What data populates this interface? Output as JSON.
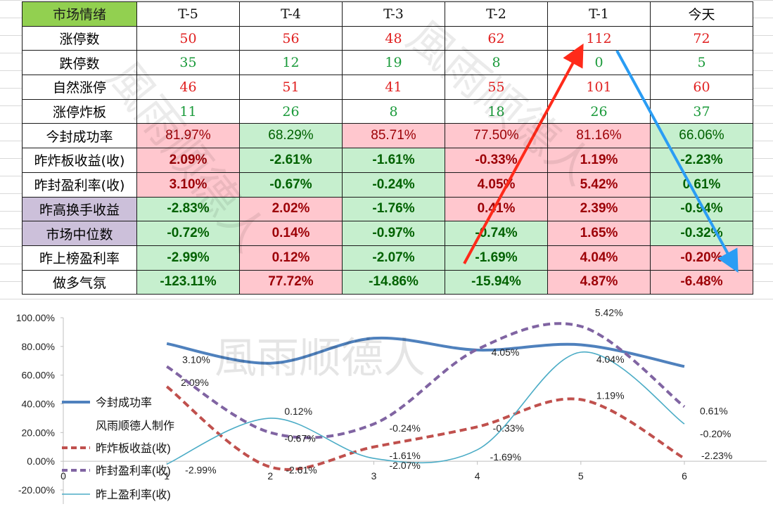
{
  "table": {
    "headers": [
      "市场情绪",
      "T-5",
      "T-4",
      "T-3",
      "T-2",
      "T-1",
      "今天"
    ],
    "rows": [
      {
        "label": "涨停数",
        "values": [
          "50",
          "56",
          "48",
          "62",
          "112",
          "72"
        ]
      },
      {
        "label": "跌停数",
        "values": [
          "35",
          "12",
          "19",
          "8",
          "0",
          "5"
        ]
      },
      {
        "label": "自然涨停",
        "values": [
          "46",
          "51",
          "41",
          "55",
          "101",
          "60"
        ]
      },
      {
        "label": "涨停炸板",
        "values": [
          "11",
          "26",
          "8",
          "18",
          "26",
          "37"
        ]
      },
      {
        "label": "今封成功率",
        "values": [
          "81.97%",
          "68.29%",
          "85.71%",
          "77.50%",
          "81.16%",
          "66.06%"
        ]
      },
      {
        "label": "昨炸板收益(收)",
        "values": [
          "2.09%",
          "-2.61%",
          "-1.61%",
          "-0.33%",
          "1.19%",
          "-2.23%"
        ]
      },
      {
        "label": "昨封盈利率(收)",
        "values": [
          "3.10%",
          "-0.67%",
          "-0.24%",
          "4.05%",
          "5.42%",
          "0.61%"
        ]
      },
      {
        "label": "昨高换手收益",
        "values": [
          "-2.83%",
          "2.02%",
          "-1.76%",
          "0.41%",
          "2.39%",
          "-0.94%"
        ]
      },
      {
        "label": "市场中位数",
        "values": [
          "-0.72%",
          "0.14%",
          "-0.97%",
          "-0.74%",
          "1.65%",
          "-0.32%"
        ]
      },
      {
        "label": "昨上榜盈利率",
        "values": [
          "-2.99%",
          "0.12%",
          "-2.07%",
          "-1.69%",
          "4.04%",
          "-0.20%"
        ]
      },
      {
        "label": "做多气氛",
        "values": [
          "-123.11%",
          "77.72%",
          "-14.86%",
          "-15.94%",
          "4.87%",
          "-6.48%"
        ]
      }
    ]
  },
  "watermark": "風雨顺德人",
  "colors": {
    "header_green": "#92d050",
    "purple": "#ccc0da",
    "pink_bg": "#ffc7ce",
    "green_bg": "#c6efce",
    "text_red": "#e02020",
    "text_green": "#1a9a3a",
    "text_dark_red": "#9c0006",
    "text_dark_green": "#006100",
    "arrow_red": "#ff2a1a",
    "arrow_blue": "#2a9df4"
  },
  "chart_data": {
    "type": "line",
    "x": [
      1,
      2,
      3,
      4,
      5,
      6
    ],
    "xlim": [
      0,
      6
    ],
    "x_ticks": [
      "0",
      "1",
      "2",
      "3",
      "4",
      "5",
      "6"
    ],
    "ylim": [
      -20,
      100
    ],
    "y_ticks": [
      "100.00%",
      "80.00%",
      "60.00%",
      "40.00%",
      "20.00%",
      "0.00%",
      "-20.00%"
    ],
    "series": [
      {
        "name": "今封成功率",
        "values": [
          81.97,
          68.29,
          85.71,
          77.5,
          81.16,
          66.06
        ],
        "color": "#4f81bd",
        "style": "solid-thick",
        "labels": []
      },
      {
        "name": "昨炸板收益(收)",
        "values": [
          52.0,
          -4.0,
          10.0,
          24.0,
          43.0,
          2.0
        ],
        "color": "#c0504d",
        "style": "dashed",
        "labels": [
          "2.09%",
          "-2.61%",
          "-1.61%",
          "-0.33%",
          "1.19%",
          "-2.23%"
        ]
      },
      {
        "name": "昨封盈利率(收)",
        "values": [
          66.0,
          20.0,
          26.0,
          78.0,
          94.0,
          38.0
        ],
        "color": "#8064a2",
        "style": "dashed",
        "labels": [
          "3.10%",
          "-0.67%",
          "-0.24%",
          "4.05%",
          "5.42%",
          "0.61%"
        ]
      },
      {
        "name": "昨上盈利率(收)",
        "values": [
          -2.0,
          30.0,
          2.0,
          8.0,
          76.0,
          26.0
        ],
        "color": "#4bacc6",
        "style": "solid-thin",
        "labels": [
          "-2.99%",
          "0.12%",
          "-2.07%",
          "-1.69%",
          "4.04%",
          "-0.20%"
        ]
      }
    ],
    "legend": [
      "今封成功率",
      "风雨顺德人制作",
      "昨炸板收益(收)",
      "昨封盈利率(收)",
      "昨上盈利率(收)"
    ],
    "legend_position": "left"
  }
}
